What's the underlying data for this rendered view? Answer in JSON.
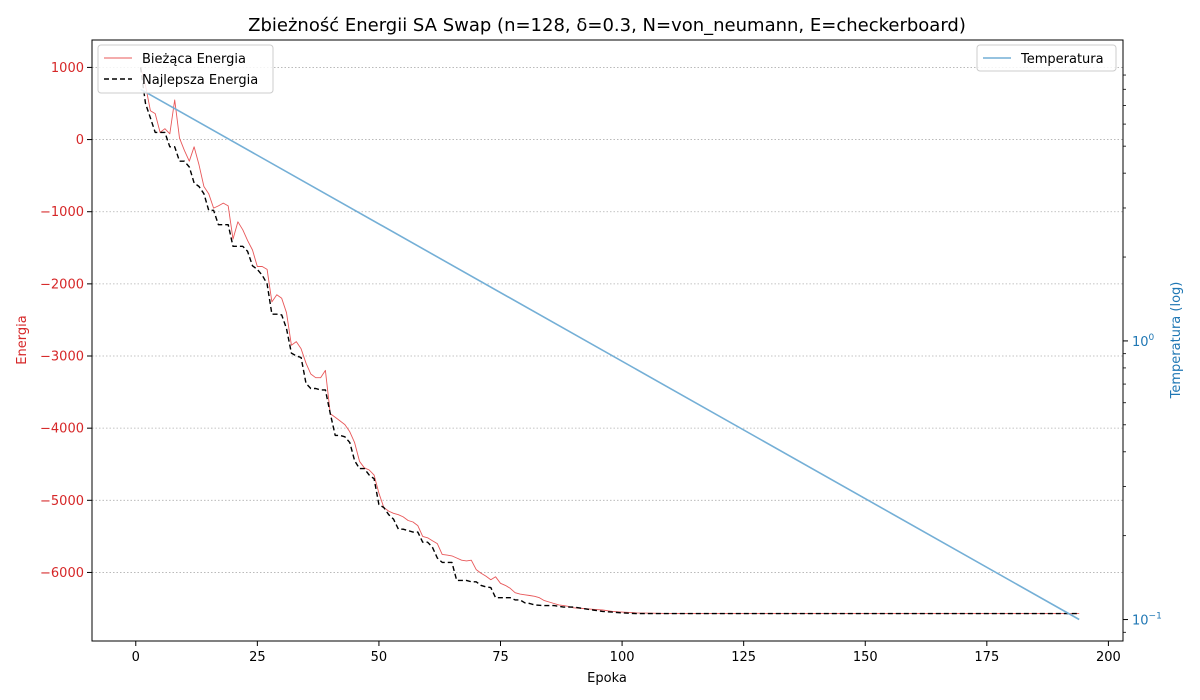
{
  "chart_data": {
    "type": "line",
    "title": "Zbieżność Energii SA Swap (n=128, δ=0.3, N=von_neumann, E=checkerboard)",
    "xlabel": "Epoka",
    "ylabel_left": "Energia",
    "ylabel_right": "Temperatura (log)",
    "xlim": [
      -9,
      203
    ],
    "ylim_left": [
      -6950,
      1380
    ],
    "ylim_right_log10": [
      -1.077,
      1.08
    ],
    "left_axis_color": "#d62728",
    "right_axis_color": "#1f77b4",
    "grid": true,
    "x_ticks": [
      "0",
      "25",
      "50",
      "75",
      "100",
      "125",
      "150",
      "175",
      "200"
    ],
    "x_tick_values": [
      0,
      25,
      50,
      75,
      100,
      125,
      150,
      175,
      200
    ],
    "y_left_ticks": [
      "1000",
      "0",
      "−1000",
      "−2000",
      "−3000",
      "−4000",
      "−5000",
      "−6000"
    ],
    "y_left_tick_values": [
      1000,
      0,
      -1000,
      -2000,
      -3000,
      -4000,
      -5000,
      -6000
    ],
    "y_right_major_ticks": [
      {
        "base": "10",
        "exp": "0",
        "value": 1
      },
      {
        "base": "10",
        "exp": "−1",
        "value": 0.1
      }
    ],
    "legend_left": {
      "position": "upper-left",
      "entries": [
        {
          "label": "Bieżąca Energia",
          "color": "#e8585a",
          "style": "solid"
        },
        {
          "label": "Najlepsza Energia",
          "color": "#000000",
          "style": "dashed"
        }
      ]
    },
    "legend_right": {
      "position": "upper-right",
      "entries": [
        {
          "label": "Temperatura",
          "color": "#74afd6",
          "style": "solid"
        }
      ]
    },
    "series": [
      {
        "name": "Bieżąca Energia",
        "axis": "left",
        "color": "#e8585a",
        "x": [
          1,
          2,
          3,
          4,
          5,
          6,
          7,
          8,
          9,
          10,
          11,
          12,
          13,
          14,
          15,
          16,
          17,
          18,
          19,
          20,
          21,
          22,
          23,
          24,
          25,
          26,
          27,
          28,
          29,
          30,
          31,
          32,
          33,
          34,
          35,
          36,
          37,
          38,
          39,
          40,
          41,
          42,
          43,
          44,
          45,
          46,
          47,
          48,
          49,
          50,
          51,
          52,
          53,
          54,
          55,
          56,
          57,
          58,
          59,
          60,
          61,
          62,
          63,
          64,
          65,
          66,
          67,
          68,
          69,
          70,
          71,
          72,
          73,
          74,
          75,
          76,
          77,
          78,
          79,
          80,
          81,
          82,
          83,
          84,
          85,
          86,
          87,
          88,
          89,
          90,
          92,
          94,
          96,
          98,
          100,
          103,
          106,
          110,
          120,
          140,
          160,
          180,
          194
        ],
        "y": [
          1000,
          750,
          400,
          360,
          100,
          150,
          80,
          550,
          20,
          -150,
          -300,
          -100,
          -350,
          -650,
          -750,
          -950,
          -920,
          -880,
          -920,
          -1380,
          -1140,
          -1250,
          -1400,
          -1530,
          -1760,
          -1760,
          -1800,
          -2250,
          -2150,
          -2200,
          -2400,
          -2850,
          -2800,
          -2900,
          -3100,
          -3250,
          -3300,
          -3300,
          -3200,
          -3800,
          -3850,
          -3900,
          -3950,
          -4050,
          -4200,
          -4460,
          -4550,
          -4580,
          -4650,
          -4900,
          -5100,
          -5150,
          -5180,
          -5200,
          -5230,
          -5280,
          -5300,
          -5350,
          -5500,
          -5520,
          -5560,
          -5600,
          -5750,
          -5760,
          -5770,
          -5800,
          -5830,
          -5840,
          -5830,
          -5960,
          -6010,
          -6050,
          -6100,
          -6060,
          -6150,
          -6180,
          -6220,
          -6280,
          -6300,
          -6310,
          -6320,
          -6330,
          -6350,
          -6390,
          -6410,
          -6430,
          -6450,
          -6460,
          -6470,
          -6490,
          -6500,
          -6510,
          -6520,
          -6540,
          -6550,
          -6560,
          -6565,
          -6570,
          -6570,
          -6570,
          -6570,
          -6570,
          -6570
        ]
      },
      {
        "name": "Najlepsza Energia",
        "axis": "left",
        "color": "#000000",
        "x": [
          1,
          2,
          3,
          4,
          5,
          6,
          7,
          8,
          9,
          10,
          11,
          12,
          13,
          14,
          15,
          16,
          17,
          18,
          19,
          20,
          21,
          22,
          23,
          24,
          25,
          26,
          27,
          28,
          29,
          30,
          31,
          32,
          33,
          34,
          35,
          36,
          37,
          38,
          39,
          40,
          41,
          42,
          43,
          44,
          45,
          46,
          47,
          48,
          49,
          50,
          51,
          52,
          53,
          54,
          55,
          56,
          57,
          58,
          59,
          60,
          61,
          62,
          63,
          64,
          65,
          66,
          67,
          68,
          69,
          70,
          71,
          72,
          73,
          74,
          75,
          76,
          77,
          78,
          79,
          80,
          81,
          82,
          84,
          86,
          88,
          90,
          92,
          94,
          96,
          98,
          100,
          103,
          106,
          110,
          120,
          140,
          160,
          180,
          194
        ],
        "y": [
          1000,
          500,
          300,
          100,
          100,
          100,
          -100,
          -100,
          -300,
          -300,
          -380,
          -600,
          -650,
          -750,
          -980,
          -980,
          -1180,
          -1180,
          -1180,
          -1480,
          -1480,
          -1480,
          -1550,
          -1750,
          -1800,
          -1880,
          -2000,
          -2420,
          -2420,
          -2430,
          -2620,
          -2960,
          -3000,
          -3020,
          -3380,
          -3450,
          -3450,
          -3470,
          -3470,
          -3800,
          -4100,
          -4100,
          -4120,
          -4200,
          -4450,
          -4560,
          -4560,
          -4650,
          -4700,
          -5060,
          -5100,
          -5200,
          -5260,
          -5400,
          -5400,
          -5420,
          -5440,
          -5440,
          -5580,
          -5580,
          -5650,
          -5800,
          -5860,
          -5860,
          -5860,
          -6110,
          -6110,
          -6110,
          -6130,
          -6130,
          -6180,
          -6200,
          -6210,
          -6350,
          -6350,
          -6350,
          -6350,
          -6380,
          -6380,
          -6420,
          -6430,
          -6450,
          -6460,
          -6460,
          -6480,
          -6480,
          -6500,
          -6520,
          -6540,
          -6550,
          -6560,
          -6570,
          -6570,
          -6570,
          -6570,
          -6570,
          -6570,
          -6570,
          -6570
        ]
      },
      {
        "name": "Temperatura",
        "axis": "right",
        "color": "#74afd6",
        "x": [
          1,
          194
        ],
        "y": [
          8.0,
          0.1
        ]
      }
    ]
  }
}
